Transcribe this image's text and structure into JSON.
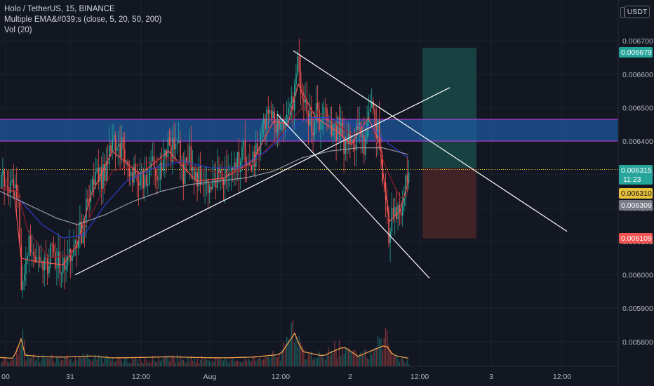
{
  "legend": {
    "symbol": "Holo / TetherUS, 15, BINANCE",
    "indicator": "Multiple EMA&#039;s (close, 5, 20, 50, 200)",
    "volume": "Vol (20)"
  },
  "currency_button": "USDT",
  "colors": {
    "background": "#131722",
    "up": "#26a69a",
    "down": "#ef5350",
    "grid": "#1e222d",
    "zone_fill": "#1e5a9e",
    "zone_border": "#b43dd6",
    "trend_line": "#ffffff",
    "target_fill": "#1a4a47",
    "stop_fill": "#4a2428",
    "current_price_line": "#e8d22a"
  },
  "chart_data": {
    "type": "candlestick",
    "y_axis": {
      "ylim": [
        0.00572,
        0.00678
      ],
      "ticks": [
        "0.006700",
        "0.006600",
        "0.006500",
        "0.006400",
        "0.006300",
        "0.006200",
        "0.006100",
        "0.006000",
        "0.005900",
        "0.005800"
      ]
    },
    "x_axis": {
      "ticks": [
        "00",
        "31",
        "12:00",
        "Aug",
        "12:00",
        "2",
        "12:00",
        "3",
        "12:00"
      ]
    },
    "price_labels": [
      {
        "value": "0.006679",
        "color": "#26a69a",
        "text_color": "#ffffff"
      },
      {
        "value": "0.006315",
        "color": "#26a69a",
        "text_color": "#ffffff",
        "countdown": "11:23"
      },
      {
        "value": "0.006310",
        "color": "#e8c13a",
        "text_color": "#131722"
      },
      {
        "value": "0.006309",
        "color": "#787b86",
        "text_color": "#ffffff"
      },
      {
        "value": "0.006109",
        "color": "#ef5350",
        "text_color": "#ffffff"
      }
    ],
    "resistance_zone": {
      "from": 0.0064,
      "to": 0.006465
    },
    "current_price": 0.006315,
    "position": {
      "entry": 0.00632,
      "target": 0.006679,
      "stop": 0.006109
    },
    "price_path": [
      [
        0,
        0.00626
      ],
      [
        4,
        0.00628
      ],
      [
        8,
        0.00624
      ],
      [
        12,
        0.00627
      ],
      [
        16,
        0.00625
      ],
      [
        20,
        0.00626
      ],
      [
        24,
        0.00622
      ],
      [
        27,
        0.00615
      ],
      [
        30,
        0.00596
      ],
      [
        33,
        0.00601
      ],
      [
        36,
        0.00606
      ],
      [
        40,
        0.00611
      ],
      [
        44,
        0.00605
      ],
      [
        48,
        0.00603
      ],
      [
        52,
        0.00606
      ],
      [
        56,
        0.00604
      ],
      [
        60,
        0.00601
      ],
      [
        64,
        0.00604
      ],
      [
        68,
        0.00602
      ],
      [
        72,
        0.00607
      ],
      [
        76,
        0.00603
      ],
      [
        80,
        0.00606
      ],
      [
        84,
        0.00602
      ],
      [
        88,
        0.00601
      ],
      [
        92,
        0.00604
      ],
      [
        96,
        0.00603
      ],
      [
        100,
        0.00606
      ],
      [
        104,
        0.00609
      ],
      [
        108,
        0.00607
      ],
      [
        112,
        0.00612
      ],
      [
        116,
        0.00612
      ],
      [
        120,
        0.00618
      ],
      [
        124,
        0.0062
      ],
      [
        128,
        0.00626
      ],
      [
        132,
        0.0063
      ],
      [
        136,
        0.00633
      ],
      [
        140,
        0.00631
      ],
      [
        144,
        0.00629
      ],
      [
        148,
        0.0063
      ],
      [
        152,
        0.00634
      ],
      [
        156,
        0.00636
      ],
      [
        160,
        0.00639
      ],
      [
        164,
        0.00637
      ],
      [
        168,
        0.00636
      ],
      [
        172,
        0.00639
      ],
      [
        176,
        0.00635
      ],
      [
        180,
        0.00634
      ],
      [
        184,
        0.00633
      ],
      [
        188,
        0.00628
      ],
      [
        192,
        0.0063
      ],
      [
        196,
        0.00628
      ],
      [
        200,
        0.00632
      ],
      [
        204,
        0.00627
      ],
      [
        208,
        0.0063
      ],
      [
        212,
        0.00628
      ],
      [
        216,
        0.00633
      ],
      [
        220,
        0.0063
      ],
      [
        224,
        0.00629
      ],
      [
        228,
        0.00636
      ],
      [
        232,
        0.00633
      ],
      [
        236,
        0.00637
      ],
      [
        240,
        0.00639
      ],
      [
        244,
        0.00636
      ],
      [
        248,
        0.00639
      ],
      [
        252,
        0.00637
      ],
      [
        256,
        0.00635
      ],
      [
        260,
        0.0063
      ],
      [
        264,
        0.00633
      ],
      [
        268,
        0.00637
      ],
      [
        272,
        0.00631
      ],
      [
        276,
        0.00629
      ],
      [
        280,
        0.00627
      ],
      [
        284,
        0.0063
      ],
      [
        288,
        0.00628
      ],
      [
        292,
        0.0063
      ],
      [
        296,
        0.00627
      ],
      [
        300,
        0.00629
      ],
      [
        304,
        0.00631
      ],
      [
        308,
        0.00628
      ],
      [
        312,
        0.00629
      ],
      [
        316,
        0.00627
      ],
      [
        320,
        0.00629
      ],
      [
        324,
        0.00631
      ],
      [
        328,
        0.00633
      ],
      [
        332,
        0.00632
      ],
      [
        336,
        0.00635
      ],
      [
        340,
        0.00633
      ],
      [
        344,
        0.00638
      ],
      [
        348,
        0.00636
      ],
      [
        352,
        0.00635
      ],
      [
        356,
        0.00632
      ],
      [
        360,
        0.00634
      ],
      [
        364,
        0.00637
      ],
      [
        368,
        0.00639
      ],
      [
        372,
        0.00642
      ],
      [
        376,
        0.00644
      ],
      [
        380,
        0.00646
      ],
      [
        384,
        0.00648
      ],
      [
        388,
        0.00649
      ],
      [
        392,
        0.00645
      ],
      [
        396,
        0.00643
      ],
      [
        400,
        0.00644
      ],
      [
        404,
        0.00642
      ],
      [
        408,
        0.00645
      ],
      [
        412,
        0.00648
      ],
      [
        416,
        0.00652
      ],
      [
        420,
        0.00657
      ],
      [
        424,
        0.00664
      ],
      [
        426,
        0.00655
      ],
      [
        430,
        0.0065
      ],
      [
        434,
        0.00653
      ],
      [
        438,
        0.00649
      ],
      [
        442,
        0.00646
      ],
      [
        446,
        0.00645
      ],
      [
        450,
        0.00648
      ],
      [
        454,
        0.00647
      ],
      [
        458,
        0.00649
      ],
      [
        462,
        0.0065
      ],
      [
        466,
        0.00645
      ],
      [
        470,
        0.00643
      ],
      [
        474,
        0.00645
      ],
      [
        478,
        0.00642
      ],
      [
        482,
        0.00646
      ],
      [
        486,
        0.00644
      ],
      [
        490,
        0.00639
      ],
      [
        494,
        0.00636
      ],
      [
        498,
        0.00642
      ],
      [
        502,
        0.00638
      ],
      [
        506,
        0.00641
      ],
      [
        510,
        0.00646
      ],
      [
        514,
        0.00642
      ],
      [
        518,
        0.00638
      ],
      [
        522,
        0.00647
      ],
      [
        526,
        0.0065
      ],
      [
        530,
        0.00648
      ],
      [
        534,
        0.00646
      ],
      [
        538,
        0.00643
      ],
      [
        542,
        0.00636
      ],
      [
        546,
        0.00626
      ],
      [
        550,
        0.00616
      ],
      [
        554,
        0.00612
      ],
      [
        558,
        0.00618
      ],
      [
        562,
        0.00621
      ],
      [
        566,
        0.00617
      ],
      [
        570,
        0.0062
      ],
      [
        574,
        0.00623
      ],
      [
        578,
        0.00627
      ],
      [
        582,
        0.00631
      ]
    ],
    "ema_paths": [
      {
        "name": "EMA 5",
        "color": "#ef5350",
        "points": [
          [
            0,
            0.00626
          ],
          [
            20,
            0.00625
          ],
          [
            30,
            0.00605
          ],
          [
            50,
            0.00604
          ],
          [
            90,
            0.00603
          ],
          [
            110,
            0.00609
          ],
          [
            130,
            0.00624
          ],
          [
            160,
            0.00637
          ],
          [
            200,
            0.0063
          ],
          [
            240,
            0.00637
          ],
          [
            280,
            0.00628
          ],
          [
            320,
            0.00629
          ],
          [
            360,
            0.00634
          ],
          [
            390,
            0.00646
          ],
          [
            410,
            0.00645
          ],
          [
            425,
            0.00657
          ],
          [
            450,
            0.00647
          ],
          [
            480,
            0.00643
          ],
          [
            500,
            0.00639
          ],
          [
            525,
            0.00647
          ],
          [
            540,
            0.0064
          ],
          [
            555,
            0.00616
          ],
          [
            570,
            0.00619
          ],
          [
            582,
            0.00628
          ]
        ]
      },
      {
        "name": "EMA 20",
        "color": "#8b1e2b",
        "points": [
          [
            0,
            0.00626
          ],
          [
            25,
            0.00625
          ],
          [
            40,
            0.00613
          ],
          [
            70,
            0.00605
          ],
          [
            100,
            0.00606
          ],
          [
            130,
            0.00618
          ],
          [
            160,
            0.00631
          ],
          [
            200,
            0.00633
          ],
          [
            240,
            0.00635
          ],
          [
            280,
            0.00632
          ],
          [
            320,
            0.0063
          ],
          [
            360,
            0.00633
          ],
          [
            400,
            0.00642
          ],
          [
            430,
            0.0065
          ],
          [
            460,
            0.00648
          ],
          [
            500,
            0.00642
          ],
          [
            530,
            0.00644
          ],
          [
            550,
            0.00632
          ],
          [
            570,
            0.00623
          ],
          [
            582,
            0.00624
          ]
        ]
      },
      {
        "name": "EMA 50",
        "color": "#2d3ec9",
        "points": [
          [
            0,
            0.00625
          ],
          [
            30,
            0.00622
          ],
          [
            60,
            0.00615
          ],
          [
            90,
            0.00611
          ],
          [
            120,
            0.00612
          ],
          [
            150,
            0.00621
          ],
          [
            180,
            0.00628
          ],
          [
            220,
            0.00632
          ],
          [
            260,
            0.00634
          ],
          [
            300,
            0.00632
          ],
          [
            340,
            0.00632
          ],
          [
            380,
            0.00637
          ],
          [
            410,
            0.00643
          ],
          [
            440,
            0.00647
          ],
          [
            470,
            0.00647
          ],
          [
            500,
            0.00645
          ],
          [
            530,
            0.00644
          ],
          [
            555,
            0.00639
          ],
          [
            582,
            0.00635
          ]
        ]
      },
      {
        "name": "EMA 200",
        "color": "#9598a1",
        "points": [
          [
            0,
            0.00625
          ],
          [
            40,
            0.00621
          ],
          [
            80,
            0.00617
          ],
          [
            110,
            0.00615
          ],
          [
            150,
            0.00618
          ],
          [
            190,
            0.00622
          ],
          [
            230,
            0.00625
          ],
          [
            270,
            0.00627
          ],
          [
            310,
            0.00628
          ],
          [
            350,
            0.00629
          ],
          [
            390,
            0.00631
          ],
          [
            430,
            0.00635
          ],
          [
            470,
            0.00637
          ],
          [
            510,
            0.00638
          ],
          [
            545,
            0.00638
          ],
          [
            582,
            0.00636
          ]
        ]
      }
    ],
    "volume_path": [
      [
        0,
        12
      ],
      [
        20,
        10
      ],
      [
        30,
        60
      ],
      [
        36,
        18
      ],
      [
        60,
        14
      ],
      [
        90,
        13
      ],
      [
        130,
        16
      ],
      [
        160,
        11
      ],
      [
        200,
        12
      ],
      [
        240,
        14
      ],
      [
        280,
        12
      ],
      [
        320,
        11
      ],
      [
        360,
        13
      ],
      [
        400,
        20
      ],
      [
        420,
        75
      ],
      [
        430,
        28
      ],
      [
        460,
        16
      ],
      [
        490,
        40
      ],
      [
        510,
        15
      ],
      [
        550,
        45
      ],
      [
        560,
        18
      ],
      [
        582,
        10
      ]
    ]
  }
}
